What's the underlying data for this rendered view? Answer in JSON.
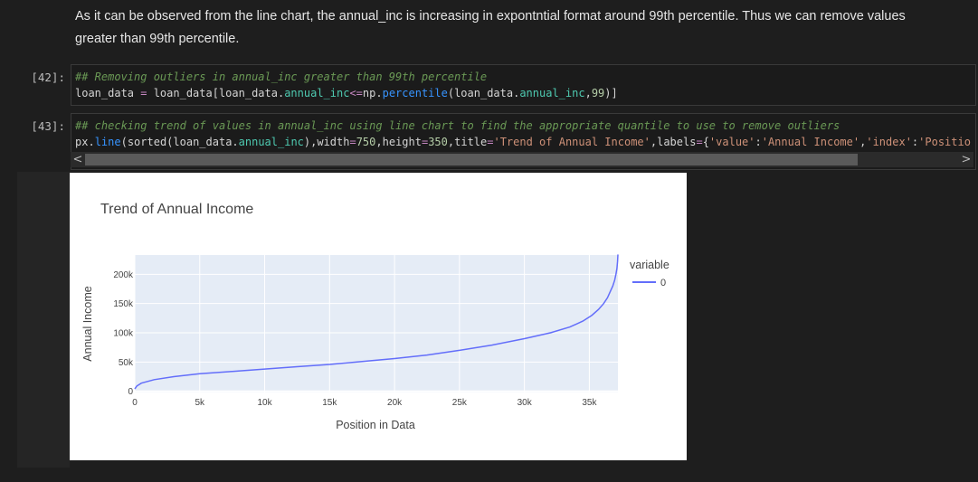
{
  "markdown": {
    "text": "As it can be observed from the line chart, the annual_inc is increasing in expontntial format around 99th percentile. Thus we can remove values greater than 99th percentile."
  },
  "cells": [
    {
      "prompt": "[42]:",
      "lines": [
        "## Removing outliers in annual_inc greater than 99th percentile",
        "loan_data = loan_data[loan_data.annual_inc<=np.percentile(loan_data.annual_inc,99)]"
      ]
    },
    {
      "prompt": "[43]:",
      "lines": [
        "## checking trend of values in annual_inc using line chart to find the appropriate quantile to use to remove outliers",
        "px.line(sorted(loan_data.annual_inc),width=750,height=350,title='Trend of Annual Income',labels={'value':'Annual Income','index':'Position in"
      ]
    }
  ],
  "scroll": {
    "left_arrow": "<",
    "right_arrow": ">"
  },
  "chart_data": {
    "type": "line",
    "title": "Trend of Annual Income",
    "xlabel": "Position in Data",
    "ylabel": "Annual Income",
    "xlim": [
      0,
      37200
    ],
    "ylim": [
      -2000,
      233000
    ],
    "x_ticks": [
      0,
      5000,
      10000,
      15000,
      20000,
      25000,
      30000,
      35000
    ],
    "x_tick_labels": [
      "0",
      "5k",
      "10k",
      "15k",
      "20k",
      "25k",
      "30k",
      "35k"
    ],
    "y_ticks": [
      0,
      50000,
      100000,
      150000,
      200000
    ],
    "y_tick_labels": [
      "0",
      "50k",
      "100k",
      "150k",
      "200k"
    ],
    "legend_title": "variable",
    "legend_placement": "right",
    "grid": true,
    "colors": {
      "line": "#636efa",
      "plot_bg": "#e5ecf6",
      "grid": "#ffffff"
    },
    "series": [
      {
        "name": "0",
        "x": [
          0,
          150,
          500,
          1500,
          3000,
          5000,
          7500,
          10000,
          12500,
          15000,
          17500,
          20000,
          22500,
          25000,
          27500,
          30000,
          32000,
          33500,
          34500,
          35200,
          35700,
          36100,
          36400,
          36600,
          36800,
          36950,
          37050,
          37120,
          37170,
          37200
        ],
        "y": [
          4000,
          9000,
          14000,
          20000,
          25000,
          30000,
          34000,
          38000,
          42000,
          46000,
          51000,
          56000,
          62000,
          70000,
          79000,
          90000,
          100000,
          110000,
          120000,
          130000,
          140000,
          150000,
          160000,
          170000,
          180000,
          190000,
          200000,
          210000,
          222000,
          234000
        ]
      }
    ]
  }
}
